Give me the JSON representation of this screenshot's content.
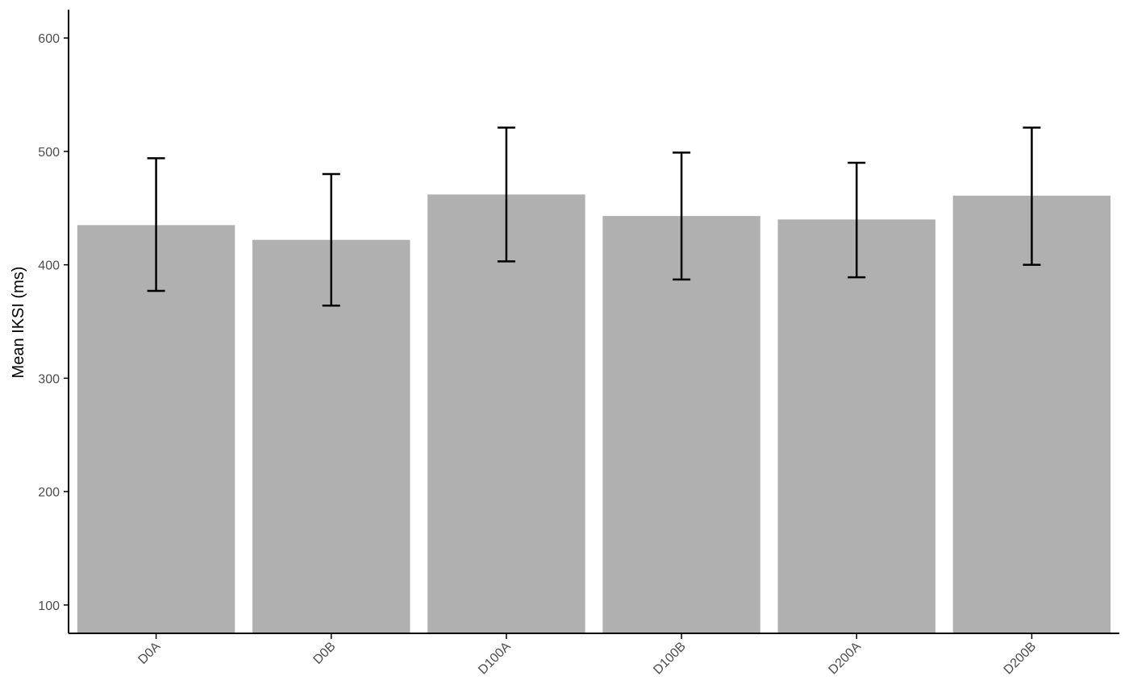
{
  "chart_data": {
    "type": "bar",
    "title": "",
    "xlabel": "",
    "ylabel": "Mean IKSI (ms)",
    "categories": [
      "D0A",
      "D0B",
      "D100A",
      "D100B",
      "D200A",
      "D200B"
    ],
    "values": [
      435,
      422,
      462,
      443,
      440,
      461
    ],
    "error_low": [
      377,
      364,
      403,
      387,
      389,
      400
    ],
    "error_high": [
      494,
      480,
      521,
      499,
      490,
      521
    ],
    "ylim": [
      75,
      625
    ],
    "yticks": [
      100,
      200,
      300,
      400,
      500,
      600
    ],
    "grid": false,
    "legend": "none",
    "colors": {
      "bar": "#b0b0b0",
      "error_bar": "#000000",
      "axis": "#000000"
    }
  }
}
